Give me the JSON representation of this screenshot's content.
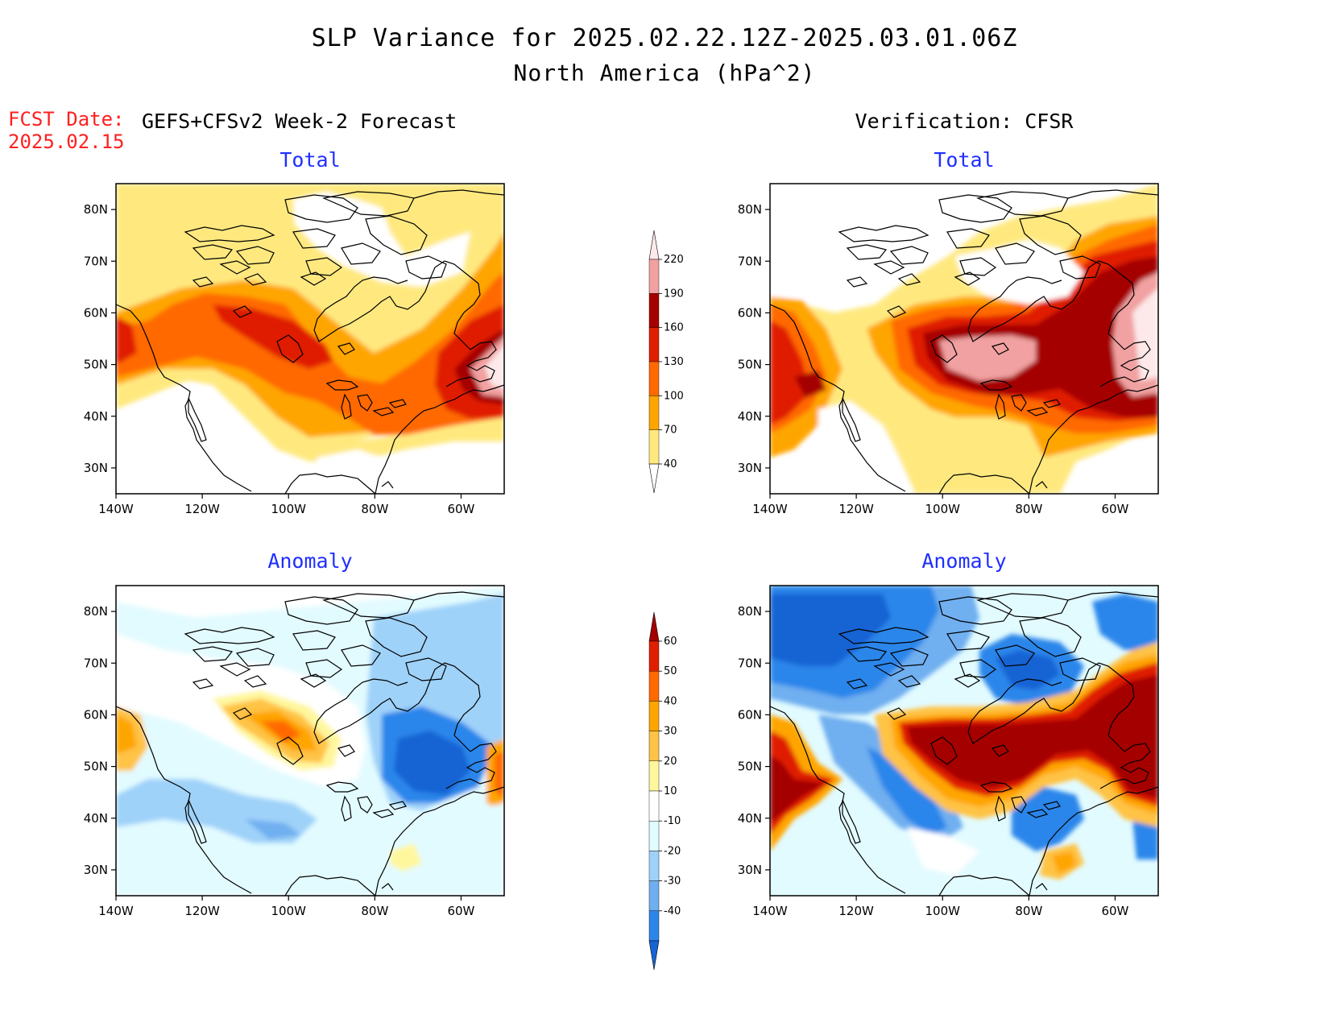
{
  "title": {
    "line1": "SLP Variance for 2025.02.22.12Z-2025.03.01.06Z",
    "line2": "North America (hPa^2)"
  },
  "fcst": {
    "label": "FCST Date:",
    "date": "2025.02.15"
  },
  "columns": {
    "left": "GEFS+CFSv2 Week-2 Forecast",
    "right": "Verification: CFSR"
  },
  "panels": {
    "forecast_total": {
      "title": "Total"
    },
    "verification_total": {
      "title": "Total"
    },
    "forecast_anomaly": {
      "title": "Anomaly"
    },
    "verification_anomaly": {
      "title": "Anomaly"
    }
  },
  "axes": {
    "lat_labels": [
      "80N",
      "70N",
      "60N",
      "50N",
      "40N",
      "30N"
    ],
    "lat_values": [
      80,
      70,
      60,
      50,
      40,
      30
    ],
    "lon_labels": [
      "140W",
      "120W",
      "100W",
      "80W",
      "60W"
    ],
    "lon_values": [
      -140,
      -120,
      -100,
      -80,
      -60
    ],
    "lat_range": [
      25,
      85
    ],
    "lon_range": [
      -140,
      -50
    ]
  },
  "colorbars": {
    "total": {
      "levels": [
        "40",
        "70",
        "100",
        "130",
        "160",
        "190",
        "220"
      ],
      "colors": [
        "#ffe97f",
        "#ffa500",
        "#ff6900",
        "#e01f00",
        "#a50000",
        "#f1a1a1",
        "#fde9e9"
      ]
    },
    "anomaly": {
      "levels": [
        "-40",
        "-30",
        "-20",
        "-10",
        "10",
        "20",
        "30",
        "40",
        "50",
        "60"
      ],
      "colors": [
        "#1764d4",
        "#2c86ea",
        "#6faff0",
        "#9fd2f9",
        "#e2fbff",
        "#ffffff",
        "#fff79d",
        "#ffc345",
        "#ffa500",
        "#ff6900",
        "#e01f00",
        "#a50000"
      ]
    }
  },
  "field_colors": {
    "background": "#ffffff",
    "coast": "#000000",
    "title_blue": "#1f2fff",
    "fcst_red": "#ff2020"
  }
}
